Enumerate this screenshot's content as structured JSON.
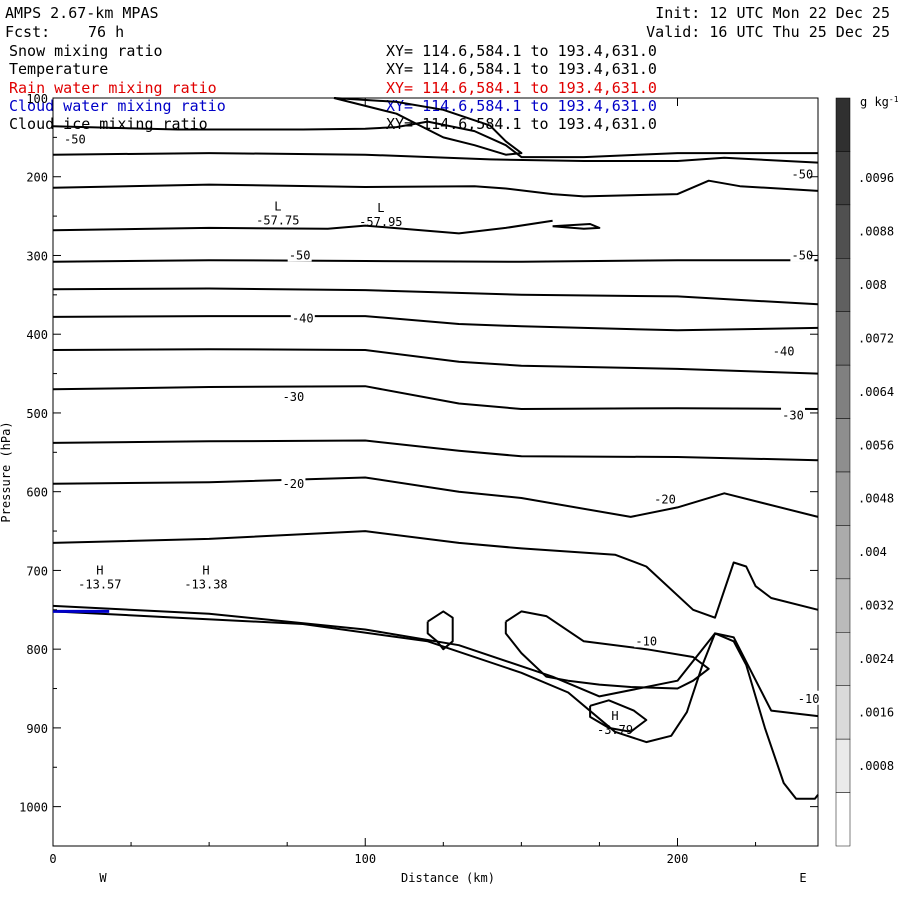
{
  "header": {
    "model": "AMPS 2.67-km MPAS",
    "fcst_label": "Fcst:",
    "fcst_value": "76 h",
    "init": "Init: 12 UTC Mon 22 Dec 25",
    "valid": "Valid: 16 UTC Thu 25 Dec 25"
  },
  "fields": [
    {
      "name": "Snow mixing ratio",
      "xy": "XY= 114.6,584.1 to 193.4,631.0",
      "color": "#000000"
    },
    {
      "name": "Temperature",
      "xy": "XY= 114.6,584.1 to 193.4,631.0",
      "color": "#000000"
    },
    {
      "name": "Rain water mixing ratio",
      "xy": "XY= 114.6,584.1 to 193.4,631.0",
      "color": "#e00000"
    },
    {
      "name": "Cloud water mixing ratio",
      "xy": "XY= 114.6,584.1 to 193.4,631.0",
      "color": "#0000c8"
    },
    {
      "name": "Cloud ice mixing ratio",
      "xy": "XY= 114.6,584.1 to 193.4,631.0",
      "color": "#000000"
    }
  ],
  "chart_data": {
    "type": "contour",
    "xlabel": "Distance (km)",
    "ylabel": "Pressure (hPa)",
    "xlim": [
      0,
      245
    ],
    "ylim": [
      1050,
      100
    ],
    "x_ticks": [
      0,
      100,
      200
    ],
    "y_ticks": [
      100,
      200,
      300,
      400,
      500,
      600,
      700,
      800,
      900,
      1000
    ],
    "west_label": "W",
    "east_label": "E",
    "colorbar": {
      "unit": "g kg",
      "unit_exp": "-1",
      "labels": [
        ".0096",
        ".0088",
        ".008",
        ".0072",
        ".0064",
        ".0056",
        ".0048",
        ".004",
        ".0032",
        ".0024",
        ".0016",
        ".0008"
      ],
      "colors": [
        "#303030",
        "#404040",
        "#505050",
        "#606060",
        "#707070",
        "#808080",
        "#8e8e8e",
        "#9c9c9c",
        "#ababab",
        "#bababa",
        "#cacaca",
        "#dadada",
        "#eaeaea",
        "#ffffff"
      ]
    },
    "contour_labels": [
      {
        "text": "-50",
        "x": 7,
        "p": 153
      },
      {
        "text": "-50",
        "x": 240,
        "p": 197
      },
      {
        "text": "-50",
        "x": 79,
        "p": 300
      },
      {
        "text": "-50",
        "x": 240,
        "p": 300
      },
      {
        "text": "-40",
        "x": 80,
        "p": 380
      },
      {
        "text": "-40",
        "x": 234,
        "p": 422
      },
      {
        "text": "-30",
        "x": 77,
        "p": 480
      },
      {
        "text": "-30",
        "x": 237,
        "p": 503
      },
      {
        "text": "-20",
        "x": 77,
        "p": 590
      },
      {
        "text": "-20",
        "x": 196,
        "p": 610
      },
      {
        "text": "-10",
        "x": 190,
        "p": 790
      },
      {
        "text": "-10",
        "x": 242,
        "p": 863
      }
    ],
    "extrema": [
      {
        "type": "L",
        "value": "-57.75",
        "x": 72,
        "p": 243
      },
      {
        "type": "L",
        "value": "-57.95",
        "x": 105,
        "p": 245
      },
      {
        "type": "H",
        "value": "-13.57",
        "x": 15,
        "p": 705
      },
      {
        "type": "H",
        "value": "-13.38",
        "x": 49,
        "p": 705
      },
      {
        "type": "H",
        "value": "-3.79",
        "x": 180,
        "p": 890
      }
    ],
    "isotherms": [
      [
        [
          0,
          136
        ],
        [
          40,
          140
        ],
        [
          80,
          140
        ],
        [
          100,
          139
        ],
        [
          110,
          137
        ],
        [
          120,
          130
        ],
        [
          135,
          142
        ],
        [
          145,
          160
        ],
        [
          150,
          175
        ],
        [
          170,
          175
        ],
        [
          200,
          170
        ],
        [
          245,
          170
        ]
      ],
      [
        [
          0,
          172
        ],
        [
          50,
          170
        ],
        [
          100,
          172
        ],
        [
          140,
          178
        ],
        [
          170,
          180
        ],
        [
          200,
          180
        ],
        [
          215,
          176
        ],
        [
          245,
          182
        ]
      ],
      [
        [
          0,
          214
        ],
        [
          50,
          210
        ],
        [
          100,
          213
        ],
        [
          135,
          212
        ],
        [
          145,
          215
        ],
        [
          160,
          222
        ],
        [
          170,
          225
        ],
        [
          200,
          222
        ],
        [
          210,
          205
        ],
        [
          220,
          212
        ],
        [
          245,
          218
        ]
      ],
      [
        [
          0,
          268
        ],
        [
          50,
          265
        ],
        [
          88,
          266
        ],
        [
          100,
          262
        ],
        [
          115,
          267
        ],
        [
          130,
          272
        ],
        [
          145,
          265
        ],
        [
          160,
          256
        ]
      ],
      [
        [
          0,
          308
        ],
        [
          50,
          306
        ],
        [
          100,
          307
        ],
        [
          150,
          308
        ],
        [
          200,
          306
        ],
        [
          245,
          306
        ]
      ],
      [
        [
          0,
          343
        ],
        [
          50,
          342
        ],
        [
          100,
          344
        ],
        [
          150,
          350
        ],
        [
          200,
          352
        ],
        [
          245,
          362
        ]
      ],
      [
        [
          0,
          378
        ],
        [
          50,
          377
        ],
        [
          100,
          377
        ],
        [
          130,
          387
        ],
        [
          150,
          390
        ],
        [
          200,
          395
        ],
        [
          245,
          392
        ]
      ],
      [
        [
          0,
          420
        ],
        [
          50,
          419
        ],
        [
          100,
          420
        ],
        [
          130,
          435
        ],
        [
          150,
          440
        ],
        [
          200,
          444
        ],
        [
          245,
          450
        ]
      ],
      [
        [
          0,
          470
        ],
        [
          50,
          467
        ],
        [
          100,
          466
        ],
        [
          130,
          488
        ],
        [
          150,
          495
        ],
        [
          200,
          494
        ],
        [
          245,
          495
        ]
      ],
      [
        [
          0,
          538
        ],
        [
          50,
          536
        ],
        [
          100,
          535
        ],
        [
          130,
          548
        ],
        [
          150,
          555
        ],
        [
          200,
          556
        ],
        [
          245,
          560
        ]
      ],
      [
        [
          0,
          590
        ],
        [
          50,
          588
        ],
        [
          100,
          582
        ],
        [
          130,
          600
        ],
        [
          150,
          608
        ],
        [
          185,
          632
        ],
        [
          200,
          620
        ],
        [
          215,
          602
        ],
        [
          245,
          632
        ]
      ],
      [
        [
          0,
          665
        ],
        [
          50,
          660
        ],
        [
          100,
          650
        ],
        [
          130,
          665
        ],
        [
          150,
          672
        ],
        [
          180,
          680
        ],
        [
          190,
          695
        ],
        [
          205,
          750
        ],
        [
          212,
          760
        ],
        [
          218,
          690
        ],
        [
          222,
          695
        ],
        [
          225,
          720
        ],
        [
          230,
          735
        ],
        [
          245,
          750
        ]
      ],
      [
        [
          0,
          745
        ],
        [
          50,
          755
        ],
        [
          100,
          775
        ],
        [
          130,
          795
        ],
        [
          160,
          835
        ],
        [
          175,
          860
        ],
        [
          200,
          840
        ],
        [
          212,
          780
        ],
        [
          218,
          785
        ],
        [
          230,
          878
        ],
        [
          245,
          885
        ]
      ],
      [
        [
          0,
          752
        ],
        [
          40,
          760
        ],
        [
          80,
          768
        ],
        [
          120,
          790
        ],
        [
          150,
          830
        ],
        [
          165,
          855
        ],
        [
          180,
          905
        ],
        [
          190,
          918
        ],
        [
          198,
          910
        ],
        [
          203,
          880
        ],
        [
          208,
          820
        ],
        [
          212,
          780
        ],
        [
          218,
          790
        ],
        [
          222,
          820
        ],
        [
          228,
          900
        ],
        [
          234,
          970
        ],
        [
          238,
          990
        ],
        [
          244,
          990
        ],
        [
          245,
          985
        ]
      ],
      [
        [
          145,
          765
        ],
        [
          150,
          752
        ],
        [
          158,
          758
        ],
        [
          170,
          790
        ],
        [
          190,
          800
        ],
        [
          205,
          810
        ],
        [
          210,
          825
        ],
        [
          205,
          840
        ],
        [
          200,
          850
        ],
        [
          185,
          848
        ],
        [
          175,
          845
        ],
        [
          165,
          840
        ],
        [
          158,
          835
        ],
        [
          150,
          805
        ],
        [
          145,
          780
        ],
        [
          145,
          765
        ]
      ],
      [
        [
          120,
          765
        ],
        [
          125,
          752
        ],
        [
          128,
          760
        ],
        [
          128,
          790
        ],
        [
          125,
          800
        ],
        [
          123,
          790
        ],
        [
          120,
          780
        ],
        [
          120,
          765
        ]
      ],
      [
        [
          172,
          872
        ],
        [
          178,
          865
        ],
        [
          186,
          878
        ],
        [
          190,
          890
        ],
        [
          185,
          905
        ],
        [
          178,
          900
        ],
        [
          172,
          886
        ],
        [
          172,
          872
        ]
      ],
      [
        [
          90,
          100
        ],
        [
          110,
          105
        ],
        [
          125,
          115
        ],
        [
          140,
          135
        ],
        [
          145,
          155
        ],
        [
          150,
          170
        ],
        [
          145,
          172
        ],
        [
          135,
          160
        ],
        [
          125,
          150
        ],
        [
          115,
          130
        ],
        [
          110,
          120
        ],
        [
          90,
          100
        ]
      ],
      [
        [
          160,
          263
        ],
        [
          172,
          260
        ],
        [
          175,
          265
        ],
        [
          170,
          266
        ],
        [
          160,
          263
        ]
      ]
    ],
    "cloud_water": [
      [
        [
          0,
          752
        ],
        [
          18,
          752
        ]
      ]
    ]
  }
}
